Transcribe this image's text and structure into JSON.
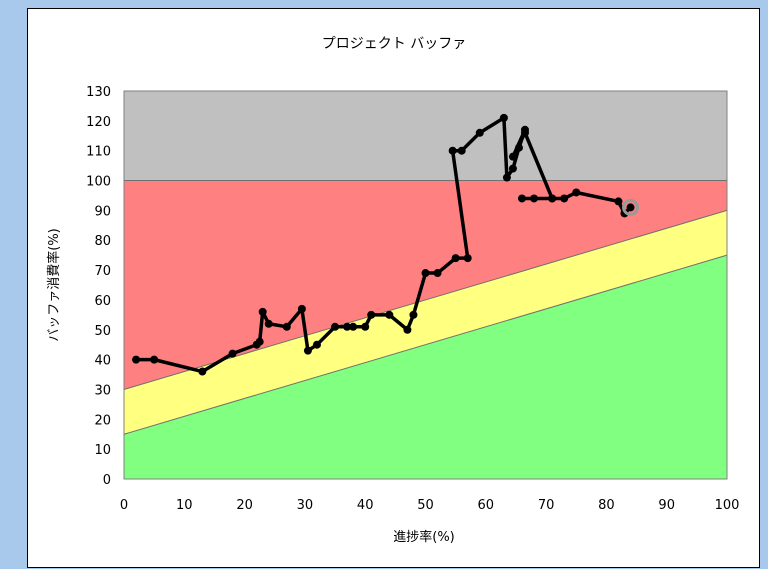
{
  "colors": {
    "background": "#a9c9ec",
    "gray_zone": "#c0c0c0",
    "red_zone": "#ff8080",
    "yellow_zone": "#ffff80",
    "green_zone": "#80ff80",
    "line": "#000000",
    "current_marker": "#999999"
  },
  "chart_data": {
    "type": "line",
    "title": "プロジェクト バッファ",
    "xlabel": "進捗率(%)",
    "ylabel": "バッファ消費率(%)",
    "xlim": [
      0,
      100
    ],
    "ylim": [
      0,
      130
    ],
    "xticks": [
      0,
      10,
      20,
      30,
      40,
      50,
      60,
      70,
      80,
      90,
      100
    ],
    "yticks": [
      0,
      10,
      20,
      30,
      40,
      50,
      60,
      70,
      80,
      90,
      100,
      110,
      120,
      130
    ],
    "grid": false,
    "zones": [
      {
        "name": "gray",
        "color": "#c0c0c0",
        "lower": [
          [
            0,
            100
          ],
          [
            100,
            100
          ]
        ],
        "upper": [
          [
            0,
            130
          ],
          [
            100,
            130
          ]
        ]
      },
      {
        "name": "red",
        "color": "#ff8080",
        "lower": [
          [
            0,
            30
          ],
          [
            100,
            90
          ]
        ],
        "upper": [
          [
            0,
            100
          ],
          [
            100,
            100
          ]
        ]
      },
      {
        "name": "yellow",
        "color": "#ffff80",
        "lower": [
          [
            0,
            15
          ],
          [
            100,
            75
          ]
        ],
        "upper": [
          [
            0,
            30
          ],
          [
            100,
            90
          ]
        ]
      },
      {
        "name": "green",
        "color": "#80ff80",
        "lower": [
          [
            0,
            0
          ],
          [
            100,
            0
          ]
        ],
        "upper": [
          [
            0,
            15
          ],
          [
            100,
            75
          ]
        ]
      }
    ],
    "series": [
      {
        "x": [
          2,
          5,
          13,
          18,
          22,
          22.5,
          23,
          24,
          27,
          29.5,
          30.5,
          32,
          35,
          37,
          38,
          40,
          41,
          44,
          47,
          48,
          50,
          52,
          55,
          57,
          54.5,
          56,
          59,
          63,
          63.5,
          64.5,
          65.5,
          66.5,
          64.5,
          66.5,
          71,
          66,
          68,
          71,
          73,
          75,
          82,
          83,
          84
        ],
        "y": [
          40,
          40,
          36,
          42,
          45,
          46,
          56,
          52,
          51,
          57,
          43,
          45,
          51,
          51,
          51,
          51,
          55,
          55,
          50,
          55,
          69,
          69,
          74,
          74,
          110,
          110,
          116,
          121,
          101,
          104,
          111,
          117,
          108,
          116,
          94,
          94,
          94,
          94,
          94,
          96,
          93,
          89,
          91
        ]
      }
    ],
    "current_point": {
      "x": 84,
      "y": 91
    }
  }
}
